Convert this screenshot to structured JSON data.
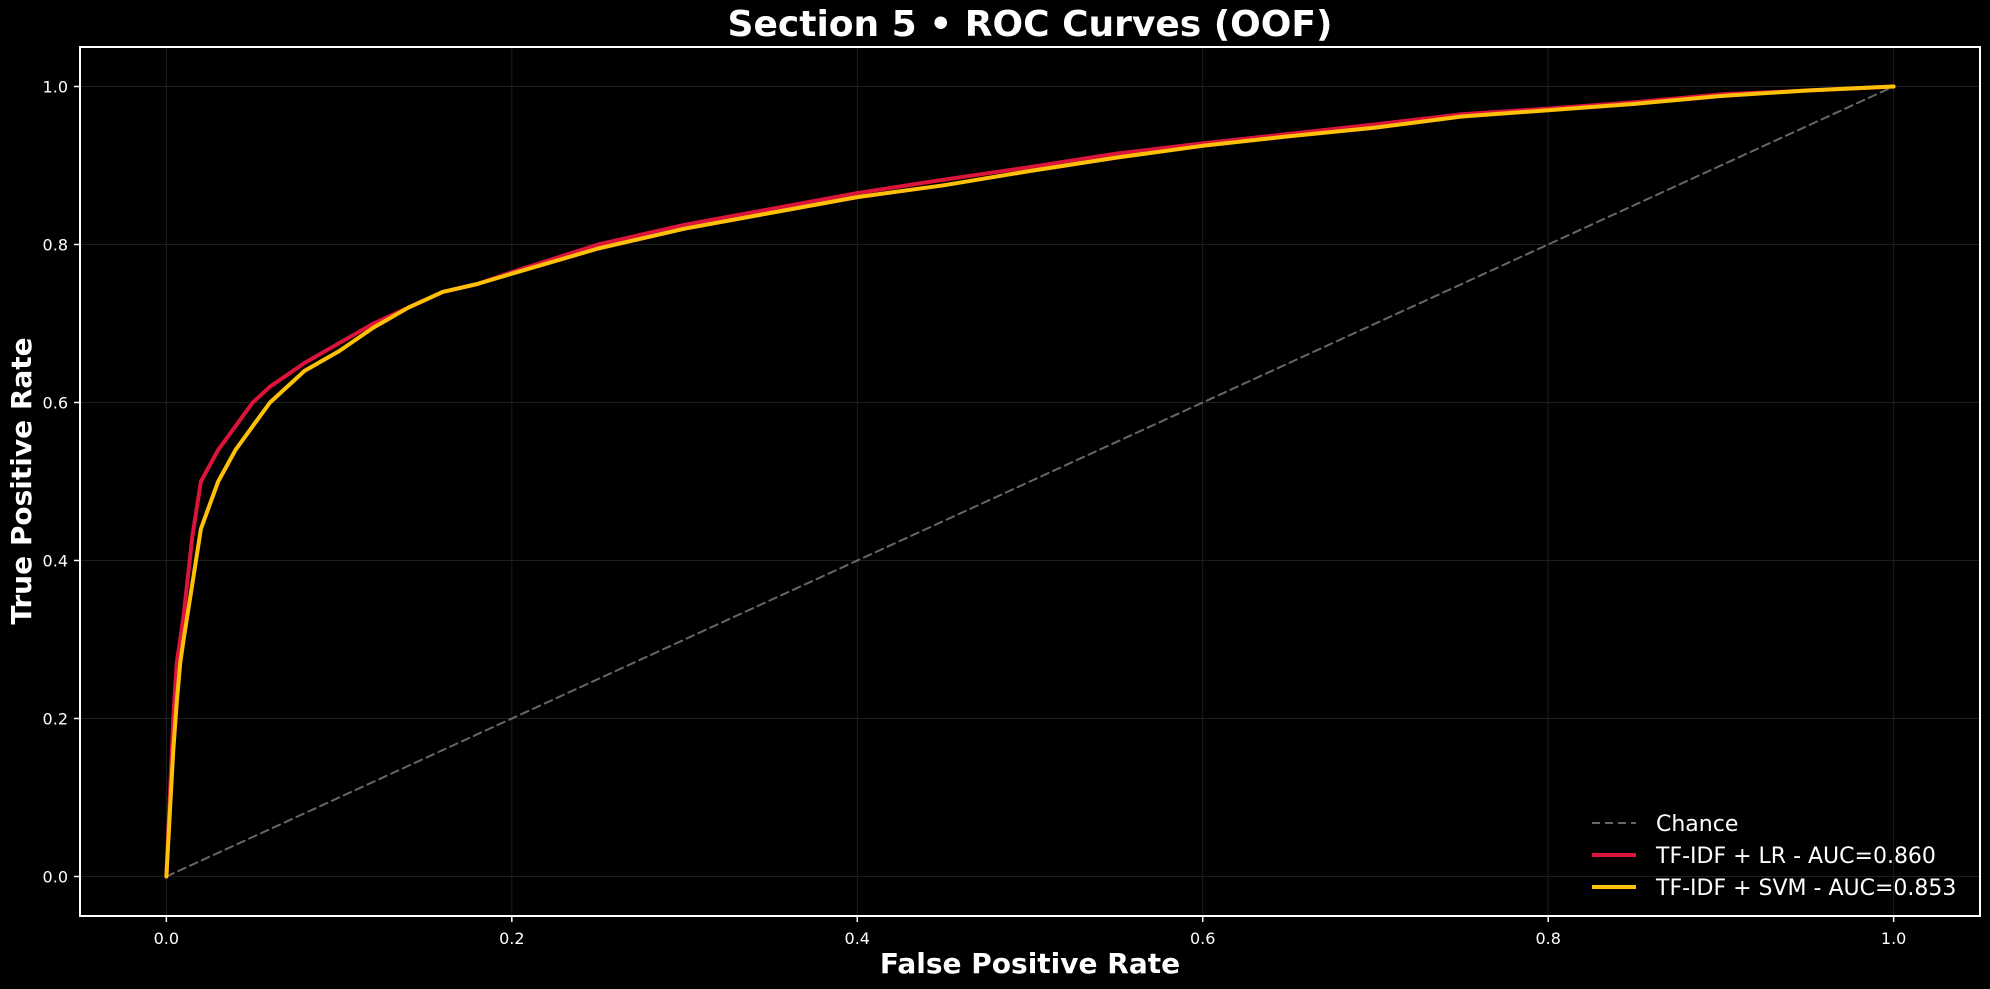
{
  "chart_data": {
    "type": "line",
    "title": "Section 5 • ROC Curves (OOF)",
    "xlabel": "False Positive Rate",
    "ylabel": "True Positive Rate",
    "xlim": [
      -0.05,
      1.05
    ],
    "ylim": [
      -0.05,
      1.05
    ],
    "xticks": [
      "0.0",
      "0.2",
      "0.4",
      "0.6",
      "0.8",
      "1.0"
    ],
    "yticks": [
      "0.0",
      "0.2",
      "0.4",
      "0.6",
      "0.8",
      "1.0"
    ],
    "grid": true,
    "legend_position": "lower-right",
    "background": "#000000",
    "series": [
      {
        "name": "Chance",
        "color": "#808080",
        "style": "dashed",
        "x": [
          0.0,
          1.0
        ],
        "y": [
          0.0,
          1.0
        ]
      },
      {
        "name": "TF-IDF + LR - AUC=0.860",
        "color": "#dc143c",
        "style": "solid",
        "x": [
          0.0,
          0.002,
          0.004,
          0.006,
          0.008,
          0.01,
          0.015,
          0.02,
          0.025,
          0.03,
          0.04,
          0.05,
          0.06,
          0.08,
          0.1,
          0.12,
          0.14,
          0.16,
          0.18,
          0.2,
          0.25,
          0.3,
          0.35,
          0.4,
          0.45,
          0.5,
          0.55,
          0.6,
          0.65,
          0.7,
          0.75,
          0.8,
          0.85,
          0.9,
          0.95,
          1.0
        ],
        "y": [
          0.0,
          0.1,
          0.2,
          0.27,
          0.3,
          0.33,
          0.43,
          0.5,
          0.52,
          0.54,
          0.57,
          0.6,
          0.62,
          0.65,
          0.675,
          0.7,
          0.72,
          0.74,
          0.75,
          0.765,
          0.8,
          0.825,
          0.845,
          0.865,
          0.882,
          0.898,
          0.915,
          0.928,
          0.94,
          0.952,
          0.965,
          0.972,
          0.98,
          0.99,
          0.995,
          1.0
        ]
      },
      {
        "name": "TF-IDF + SVM - AUC=0.853",
        "color": "#ffc107",
        "style": "solid",
        "x": [
          0.0,
          0.002,
          0.004,
          0.006,
          0.008,
          0.01,
          0.015,
          0.02,
          0.025,
          0.03,
          0.04,
          0.05,
          0.06,
          0.08,
          0.1,
          0.12,
          0.14,
          0.16,
          0.18,
          0.2,
          0.25,
          0.3,
          0.35,
          0.4,
          0.45,
          0.5,
          0.55,
          0.6,
          0.65,
          0.7,
          0.75,
          0.8,
          0.85,
          0.9,
          0.95,
          1.0
        ],
        "y": [
          0.0,
          0.08,
          0.16,
          0.22,
          0.27,
          0.3,
          0.37,
          0.44,
          0.47,
          0.5,
          0.54,
          0.57,
          0.6,
          0.64,
          0.665,
          0.695,
          0.72,
          0.74,
          0.75,
          0.763,
          0.795,
          0.82,
          0.84,
          0.86,
          0.875,
          0.893,
          0.91,
          0.925,
          0.937,
          0.948,
          0.962,
          0.97,
          0.978,
          0.988,
          0.995,
          1.0
        ]
      }
    ]
  }
}
